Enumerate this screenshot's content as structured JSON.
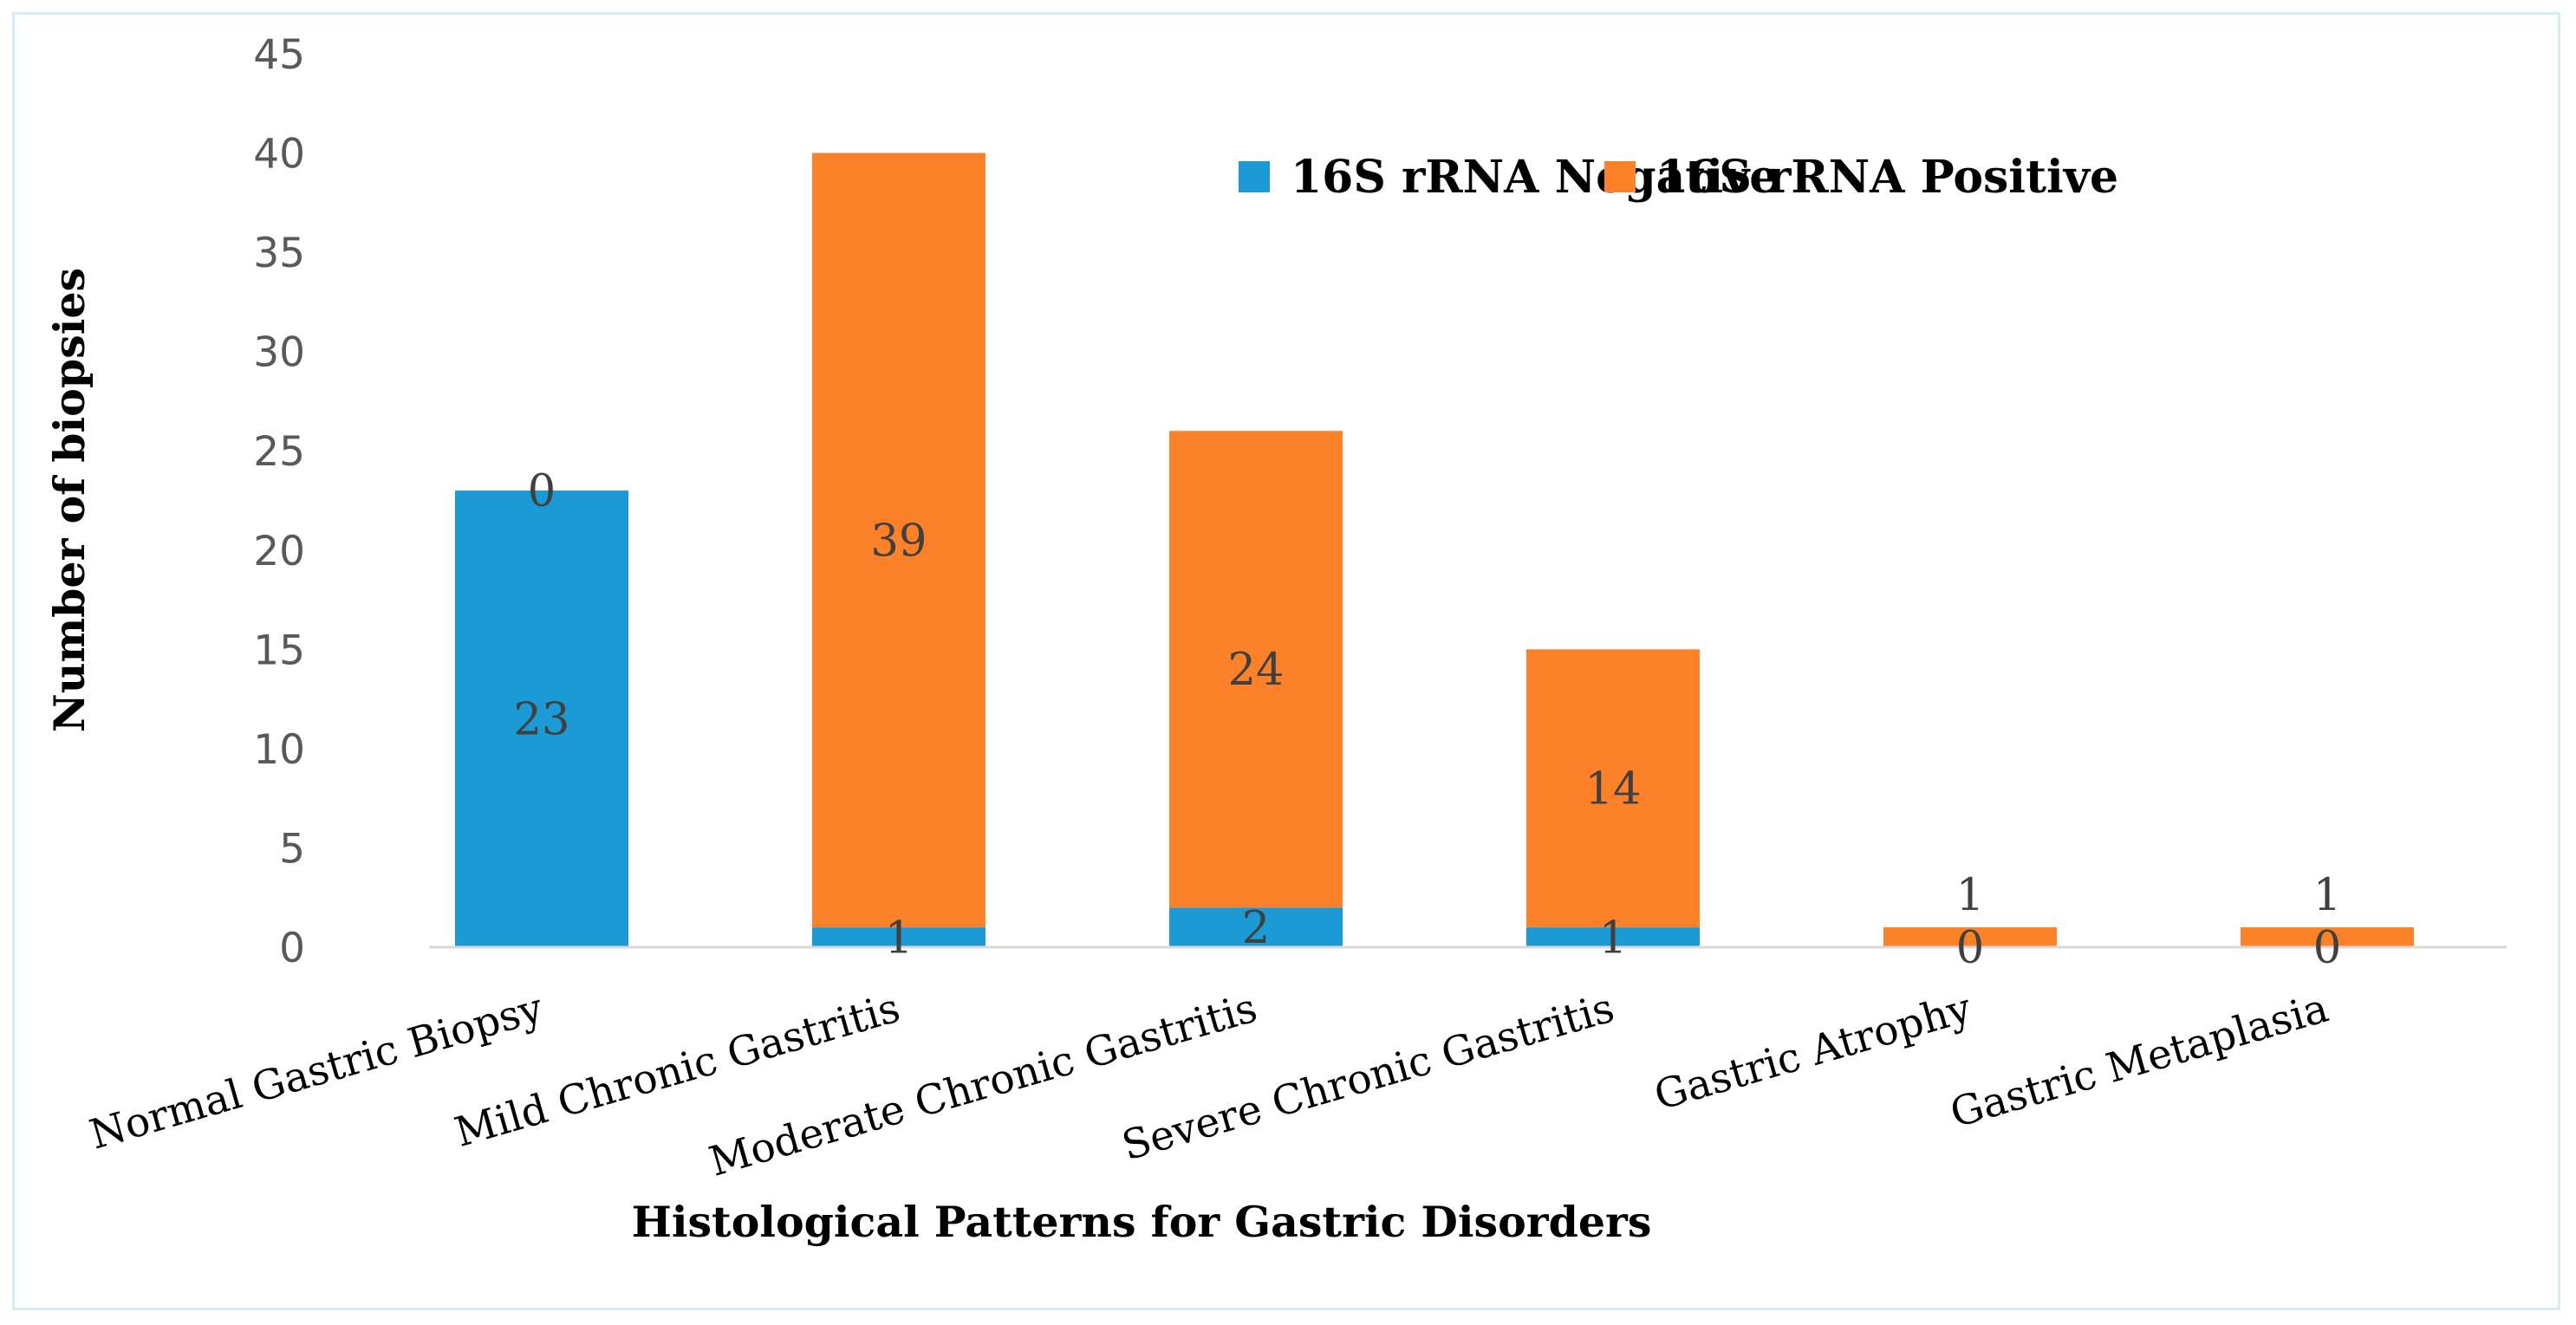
{
  "chart_data": {
    "type": "bar",
    "stacked": true,
    "title": "",
    "xlabel": "Histological Patterns for Gastric Disorders",
    "ylabel": "Number of biopsies",
    "ylim": [
      0,
      45
    ],
    "yticks": [
      0,
      5,
      10,
      15,
      20,
      25,
      30,
      35,
      40,
      45
    ],
    "categories": [
      "Normal Gastric Biopsy",
      "Mild Chronic Gastritis",
      "Moderate Chronic Gastritis",
      "Severe Chronic Gastritis",
      "Gastric Atrophy",
      "Gastric Metaplasia"
    ],
    "series": [
      {
        "name": "16S rRNA Negative",
        "color": "#1b9ad6",
        "values": [
          23,
          1,
          2,
          1,
          0,
          0
        ]
      },
      {
        "name": "16S rRNA Positive",
        "color": "#fd8128",
        "values": [
          0,
          39,
          24,
          14,
          1,
          1
        ]
      }
    ],
    "legend_position": "top-right",
    "grid": false
  }
}
